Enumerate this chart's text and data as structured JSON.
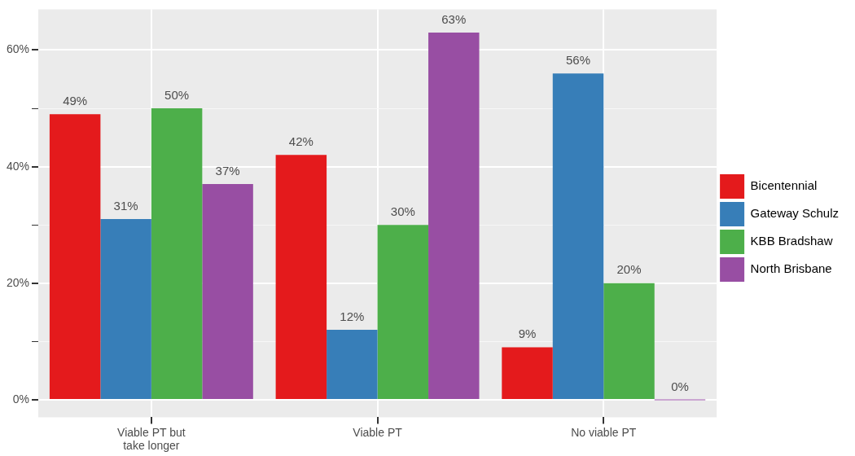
{
  "chart_data": {
    "type": "bar",
    "categories": [
      "Viable PT but take longer",
      "Viable PT",
      "No viable PT"
    ],
    "series": [
      {
        "name": "Bicentennial",
        "color": "#e41a1c",
        "values": [
          49,
          42,
          9
        ],
        "value_labels": [
          "49%",
          "42%",
          "9%"
        ]
      },
      {
        "name": "Gateway Schulz",
        "color": "#377eb8",
        "values": [
          31,
          12,
          56
        ],
        "value_labels": [
          "31%",
          "12%",
          "56%"
        ]
      },
      {
        "name": "KBB Bradshaw",
        "color": "#4daf4a",
        "values": [
          50,
          30,
          20
        ],
        "value_labels": [
          "50%",
          "30%",
          "20%"
        ]
      },
      {
        "name": "North Brisbane",
        "color": "#984ea3",
        "values": [
          37,
          63,
          0
        ],
        "value_labels": [
          "37%",
          "63%",
          "0%"
        ]
      }
    ],
    "ylim": [
      -3,
      67
    ],
    "yticks": [
      {
        "value": 0,
        "label": "0%"
      },
      {
        "value": 10,
        "label": null
      },
      {
        "value": 20,
        "label": "20%"
      },
      {
        "value": 30,
        "label": null
      },
      {
        "value": 40,
        "label": "40%"
      },
      {
        "value": 50,
        "label": null
      },
      {
        "value": 60,
        "label": "60%"
      }
    ],
    "grid": true,
    "legend": "right"
  }
}
